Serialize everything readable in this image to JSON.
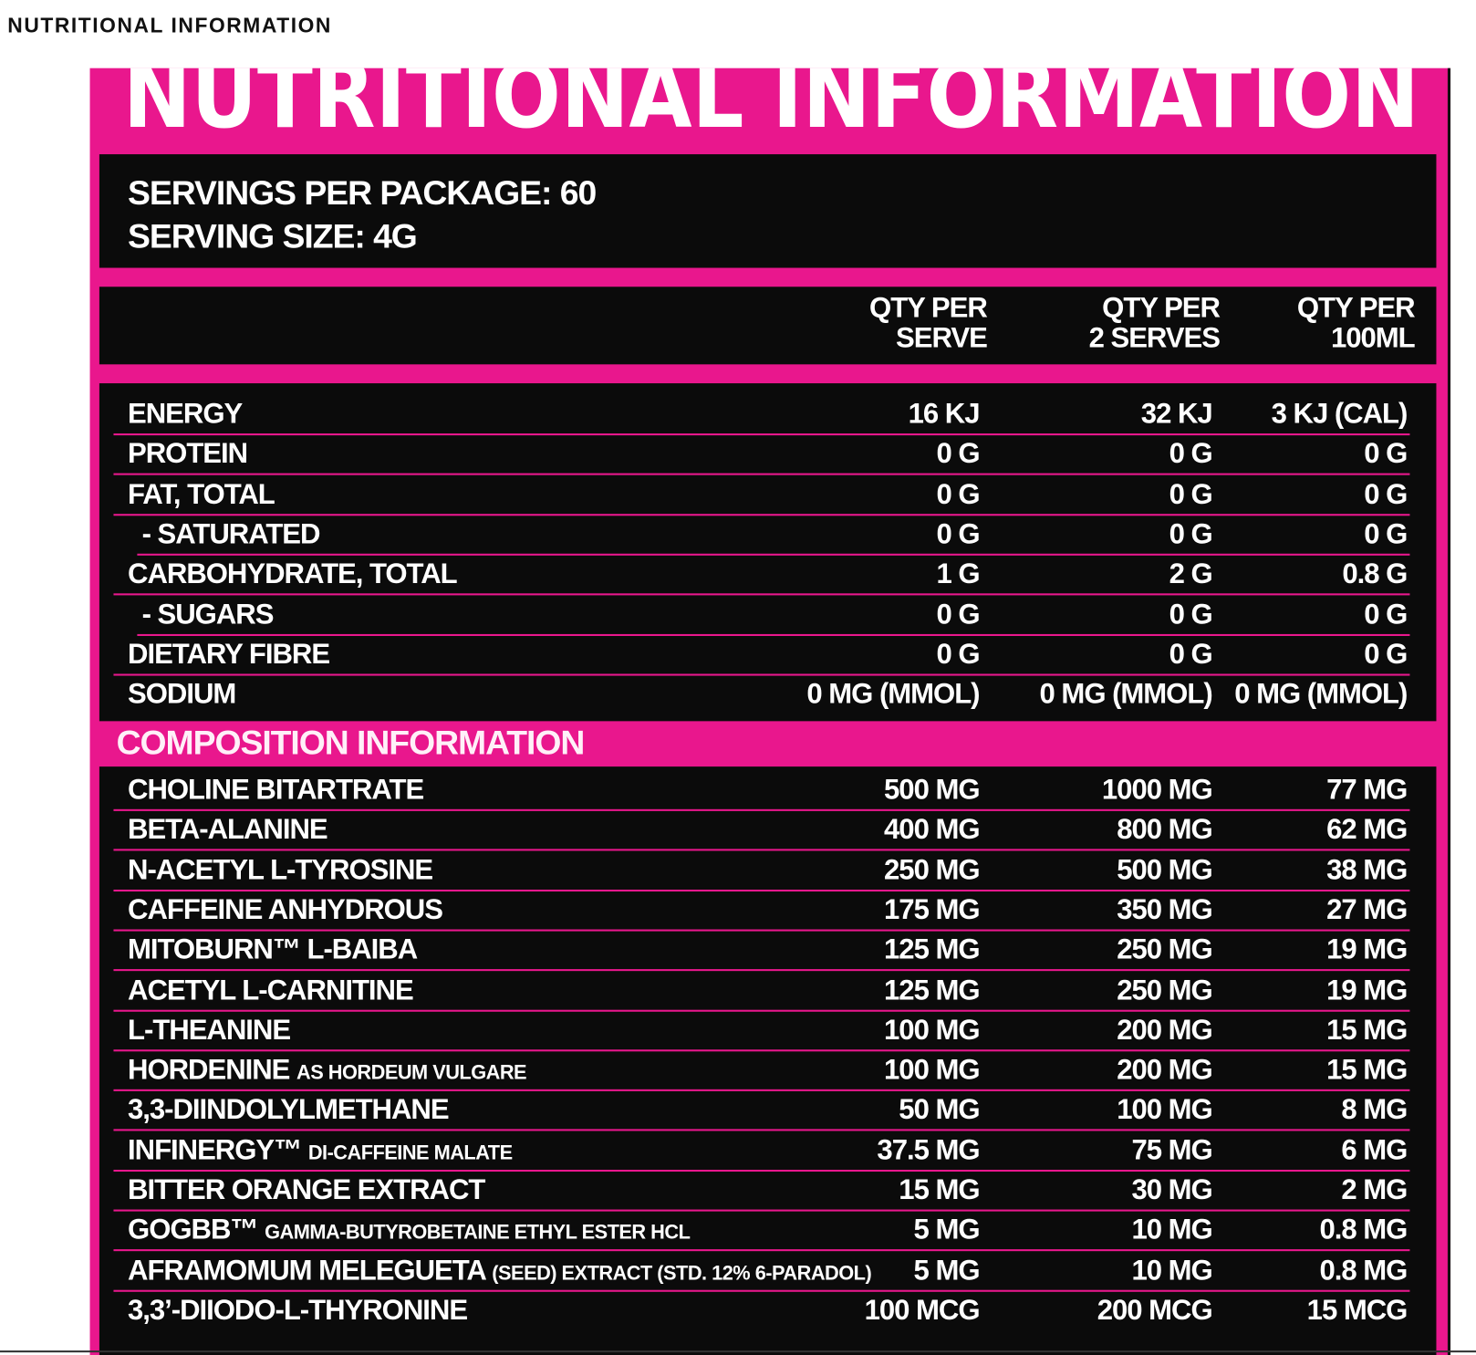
{
  "page_header": "NUTRITIONAL INFORMATION",
  "label": {
    "title": "NUTRITIONAL INFORMATION",
    "servings": [
      "SERVINGS PER PACKAGE: 60",
      "SERVING SIZE: 4G"
    ],
    "columns": [
      [
        "QTY PER",
        "SERVE"
      ],
      [
        "QTY PER",
        "2 SERVES"
      ],
      [
        "QTY PER",
        "100ML"
      ]
    ],
    "nutrition": [
      {
        "name": "ENERGY",
        "values": [
          "16 KJ",
          "32 KJ",
          "3 KJ (CAL)"
        ]
      },
      {
        "name": "PROTEIN",
        "values": [
          "0 G",
          "0 G",
          "0 G"
        ]
      },
      {
        "name": "FAT, TOTAL",
        "values": [
          "0 G",
          "0 G",
          "0 G"
        ]
      },
      {
        "name": "- SATURATED",
        "indent": true,
        "values": [
          "0 G",
          "0 G",
          "0 G"
        ]
      },
      {
        "name": "CARBOHYDRATE, TOTAL",
        "values": [
          "1 G",
          "2 G",
          "0.8 G"
        ]
      },
      {
        "name": "- SUGARS",
        "indent": true,
        "values": [
          "0 G",
          "0 G",
          "0 G"
        ]
      },
      {
        "name": "DIETARY FIBRE",
        "values": [
          "0 G",
          "0 G",
          "0 G"
        ]
      },
      {
        "name": "SODIUM",
        "values": [
          "0 MG (MMOL)",
          "0 MG (MMOL)",
          "0 MG (MMOL)"
        ]
      }
    ],
    "composition_title": "COMPOSITION INFORMATION",
    "composition": [
      {
        "name": "CHOLINE BITARTRATE",
        "values": [
          "500 MG",
          "1000 MG",
          "77 MG"
        ]
      },
      {
        "name": "BETA-ALANINE",
        "values": [
          "400 MG",
          "800 MG",
          "62 MG"
        ]
      },
      {
        "name": "N-ACETYL L-TYROSINE",
        "values": [
          "250 MG",
          "500 MG",
          "38 MG"
        ]
      },
      {
        "name": "CAFFEINE ANHYDROUS",
        "values": [
          "175 MG",
          "350 MG",
          "27 MG"
        ]
      },
      {
        "name": "MITOBURN™ L-BAIBA",
        "values": [
          "125 MG",
          "250 MG",
          "19 MG"
        ]
      },
      {
        "name": "ACETYL L-CARNITINE",
        "values": [
          "125 MG",
          "250 MG",
          "19 MG"
        ]
      },
      {
        "name": "L-THEANINE",
        "values": [
          "100 MG",
          "200 MG",
          "15 MG"
        ]
      },
      {
        "name": "HORDENINE",
        "detail": "AS HORDEUM VULGARE",
        "values": [
          "100 MG",
          "200 MG",
          "15 MG"
        ]
      },
      {
        "name": "3,3-DIINDOLYLMETHANE",
        "values": [
          "50 MG",
          "100 MG",
          "8 MG"
        ]
      },
      {
        "name": "INFINERGY™",
        "detail": "DI-CAFFEINE MALATE",
        "values": [
          "37.5 MG",
          "75 MG",
          "6 MG"
        ]
      },
      {
        "name": "BITTER ORANGE EXTRACT",
        "values": [
          "15 MG",
          "30 MG",
          "2 MG"
        ]
      },
      {
        "name": "GOGBB™",
        "detail": "GAMMA-BUTYROBETAINE ETHYL ESTER HCL",
        "values": [
          "5 MG",
          "10 MG",
          "0.8 MG"
        ]
      },
      {
        "name": "AFRAMOMUM MELEGUETA",
        "detail": "(SEED) EXTRACT (STD. 12% 6-PARADOL)",
        "values": [
          "5 MG",
          "10 MG",
          "0.8 MG"
        ]
      },
      {
        "name": "3,3’-DIIODO-L-THYRONINE",
        "values": [
          "100 MCG",
          "200 MCG",
          "15 MCG"
        ]
      }
    ]
  }
}
